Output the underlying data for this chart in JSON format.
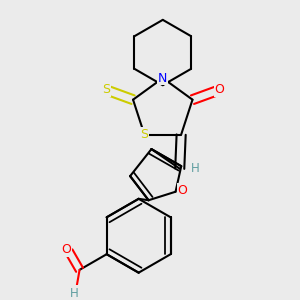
{
  "bg_color": "#ebebeb",
  "atom_colors": {
    "C": "#000000",
    "H": "#5f9ea0",
    "N": "#0000ff",
    "O": "#ff0000",
    "S": "#cccc00"
  },
  "bond_color": "#000000",
  "bond_width": 1.5,
  "figsize": [
    3.0,
    3.0
  ],
  "dpi": 100,
  "xlim": [
    0.0,
    1.0
  ],
  "ylim": [
    0.0,
    1.0
  ]
}
